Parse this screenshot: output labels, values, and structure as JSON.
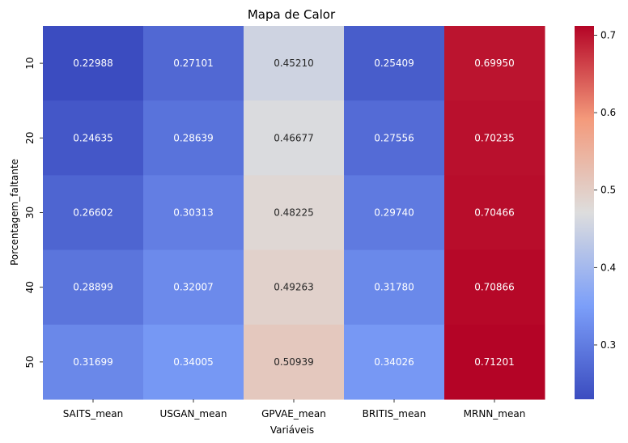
{
  "chart_data": {
    "type": "heatmap",
    "title": "Mapa de Calor",
    "xlabel": "Variáveis",
    "ylabel": "Porcentagem_faltante",
    "columns": [
      "SAITS_mean",
      "USGAN_mean",
      "GPVAE_mean",
      "BRITIS_mean",
      "MRNN_mean"
    ],
    "rows": [
      "10",
      "20",
      "30",
      "40",
      "50"
    ],
    "values": [
      [
        0.22988,
        0.27101,
        0.4521,
        0.25409,
        0.6995
      ],
      [
        0.24635,
        0.28639,
        0.46677,
        0.27556,
        0.70235
      ],
      [
        0.26602,
        0.30313,
        0.48225,
        0.2974,
        0.70466
      ],
      [
        0.28899,
        0.32007,
        0.49263,
        0.3178,
        0.70866
      ],
      [
        0.31699,
        0.34005,
        0.50939,
        0.34026,
        0.71201
      ]
    ],
    "value_labels": [
      [
        "0.22988",
        "0.27101",
        "0.45210",
        "0.25409",
        "0.69950"
      ],
      [
        "0.24635",
        "0.28639",
        "0.46677",
        "0.27556",
        "0.70235"
      ],
      [
        "0.26602",
        "0.30313",
        "0.48225",
        "0.29740",
        "0.70466"
      ],
      [
        "0.28899",
        "0.32007",
        "0.49263",
        "0.31780",
        "0.70866"
      ],
      [
        "0.31699",
        "0.34005",
        "0.50939",
        "0.34026",
        "0.71201"
      ]
    ],
    "colorscale": "coolwarm",
    "vmin": 0.22988,
    "vmax": 0.71201,
    "colorbar_ticks": [
      0.3,
      0.4,
      0.5,
      0.6,
      0.7
    ],
    "colorbar_tick_labels": [
      "0.3",
      "0.4",
      "0.5",
      "0.6",
      "0.7"
    ],
    "grid": false,
    "colorbar_placement": "right"
  }
}
